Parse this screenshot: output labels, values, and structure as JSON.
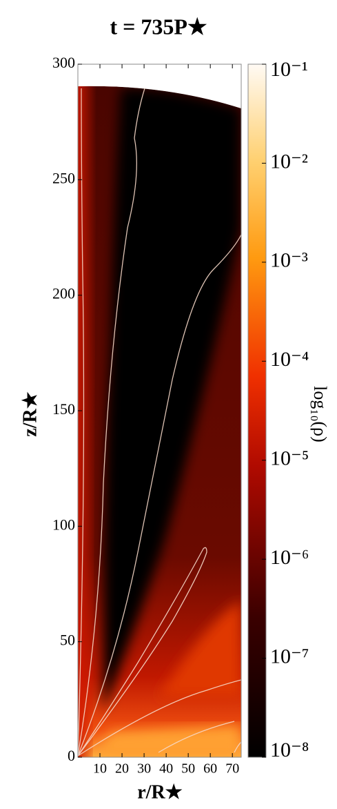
{
  "chart_data": {
    "type": "heatmap",
    "title": "t = 735P★",
    "x_label": "r/R★",
    "y_label": "z/R★",
    "xlim": [
      0,
      74
    ],
    "ylim": [
      0,
      300
    ],
    "xticks": [
      10,
      20,
      30,
      40,
      50,
      60,
      70
    ],
    "yticks": [
      0,
      50,
      100,
      150,
      200,
      250,
      300
    ],
    "colorbar": {
      "label": "log₁₀(ρ)",
      "lim": [
        -8,
        -1
      ],
      "ticks": [
        {
          "value": -1,
          "label": "10⁻¹"
        },
        {
          "value": -2,
          "label": "10⁻²"
        },
        {
          "value": -3,
          "label": "10⁻³"
        },
        {
          "value": -4,
          "label": "10⁻⁴"
        },
        {
          "value": -5,
          "label": "10⁻⁵"
        },
        {
          "value": -6,
          "label": "10⁻⁶"
        },
        {
          "value": -7,
          "label": "10⁻⁷"
        },
        {
          "value": -8,
          "label": "10⁻⁸"
        }
      ]
    }
  }
}
